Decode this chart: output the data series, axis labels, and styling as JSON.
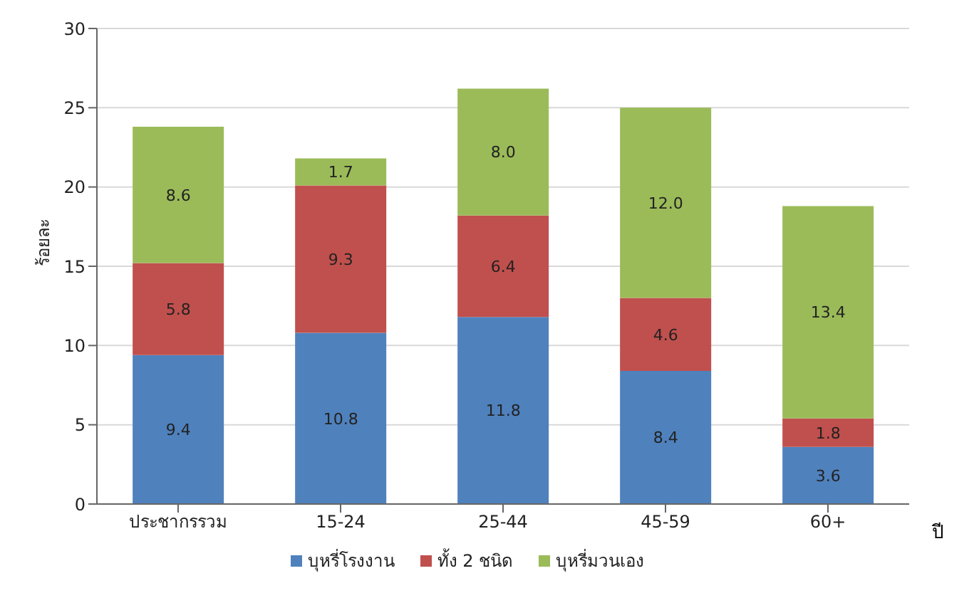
{
  "chart_data": {
    "type": "bar",
    "stacked": true,
    "ylabel": "ร้อยละ",
    "xlabel": "ปี",
    "categories": [
      "ประชากรรวม",
      "15-24",
      "25-44",
      "45-59",
      "60+"
    ],
    "series": [
      {
        "name": "บุหรี่โรงงาน",
        "color": "#4f81bd",
        "values": [
          9.4,
          10.8,
          11.8,
          8.4,
          3.6
        ],
        "value_labels": [
          "9.4",
          "10.8",
          "11.8",
          "8.4",
          "3.6"
        ]
      },
      {
        "name": "ทั้ง 2 ชนิด",
        "color": "#c0504d",
        "values": [
          5.8,
          9.3,
          6.4,
          4.6,
          1.8
        ],
        "value_labels": [
          "5.8",
          "9.3",
          "6.4",
          "4.6",
          "1.8"
        ]
      },
      {
        "name": "บุหรี่มวนเอง",
        "color": "#9bbb59",
        "values": [
          8.6,
          1.7,
          8.0,
          12.0,
          13.4
        ],
        "value_labels": [
          "8.6",
          "1.7",
          "8.0",
          "12.0",
          "13.4"
        ]
      }
    ],
    "ylim": [
      0,
      30
    ],
    "yticks": [
      0,
      5,
      10,
      15,
      20,
      25,
      30
    ],
    "grid": "y",
    "legend": "bottom"
  }
}
